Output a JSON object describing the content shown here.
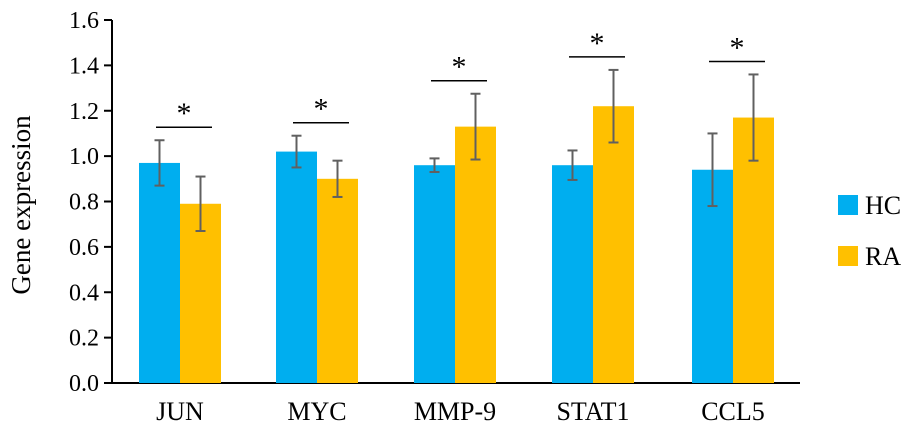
{
  "chart_data": {
    "type": "bar",
    "categories": [
      "JUN",
      "MYC",
      "MMP-9",
      "STAT1",
      "CCL5"
    ],
    "series": [
      {
        "name": "HC",
        "color": "#00AEEF",
        "values": [
          0.97,
          1.02,
          0.96,
          0.96,
          0.94
        ],
        "errors": [
          0.1,
          0.07,
          0.03,
          0.065,
          0.16
        ]
      },
      {
        "name": "RA",
        "color": "#FFC000",
        "values": [
          0.79,
          0.9,
          1.13,
          1.22,
          1.17
        ],
        "errors": [
          0.12,
          0.08,
          0.145,
          0.16,
          0.19
        ]
      }
    ],
    "significance": [
      "*",
      "*",
      "*",
      "*",
      "*"
    ],
    "ylabel": "Gene expression",
    "xlabel": "",
    "ylim": [
      0,
      1.6
    ],
    "yticks": [
      "0.0",
      "0.2",
      "0.4",
      "0.6",
      "0.8",
      "1.0",
      "1.2",
      "1.4",
      "1.6"
    ],
    "legend_position": "right",
    "grid": false
  }
}
